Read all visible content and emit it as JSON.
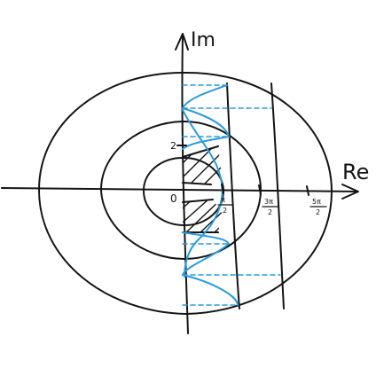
{
  "axes": {
    "imaginary_label": "Im",
    "real_label": "Re",
    "origin_label": "0",
    "tick_2_label": "2",
    "tick_pi_half": {
      "numerator": "π",
      "denominator": "2"
    },
    "tick_3pi_half": {
      "numerator": "3π",
      "denominator": "2"
    },
    "tick_5pi_half": {
      "numerator": "5π",
      "denominator": "2"
    }
  },
  "colors": {
    "ink": "#141414",
    "highlight": "#2a9bdc"
  }
}
